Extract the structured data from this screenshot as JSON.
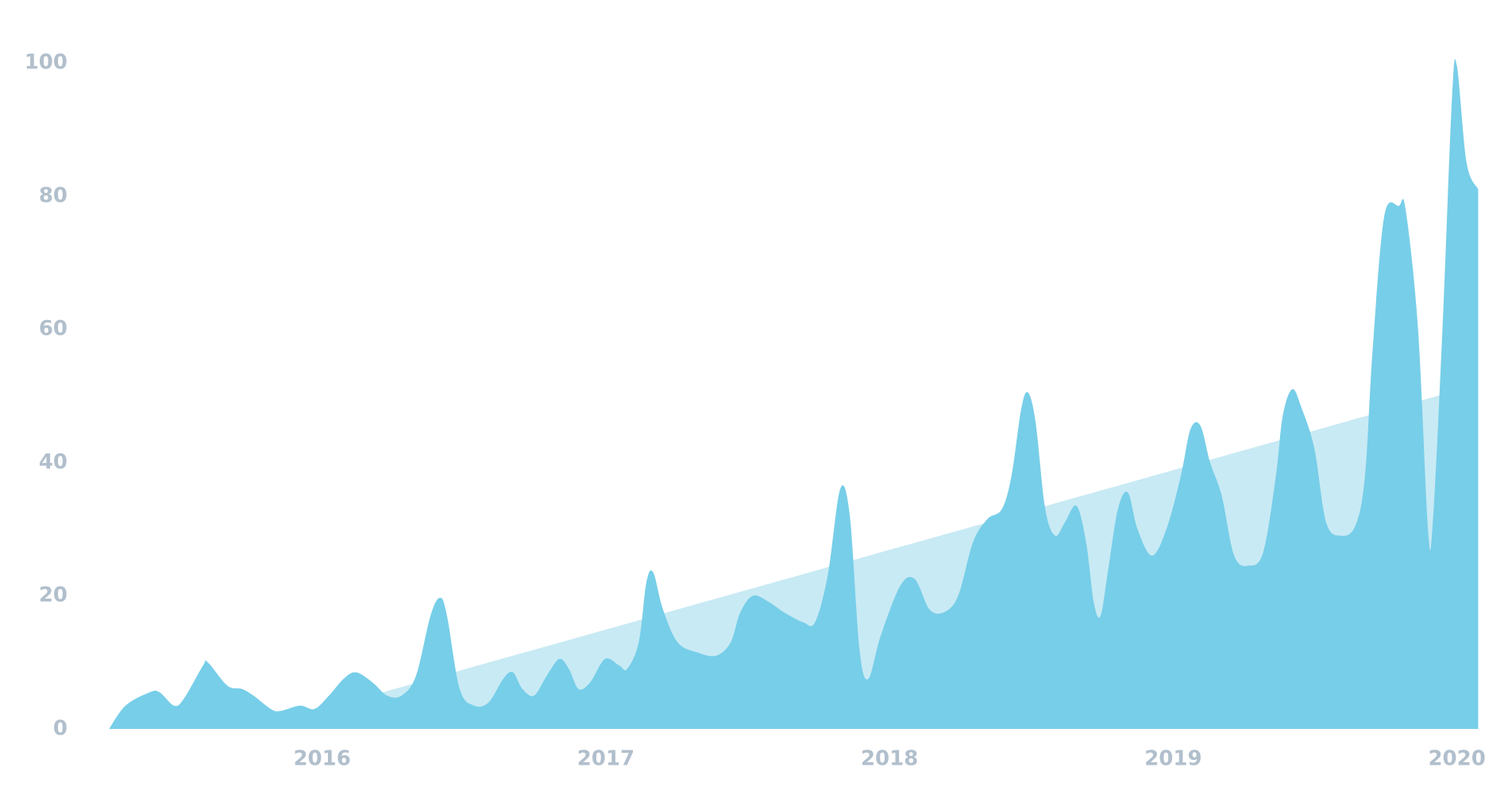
{
  "chart_data": {
    "type": "area",
    "xlim": [
      2015.164,
      2020.085
    ],
    "xticks": [
      2016,
      2017,
      2018,
      2019,
      2020
    ],
    "ylim": [
      0,
      105
    ],
    "yticks": [
      0,
      20,
      40,
      60,
      80,
      100
    ],
    "grid": false,
    "series": [
      {
        "color": "#c8eaf4",
        "x": [
          2016.188,
          2020.075
        ],
        "values": [
          5.2,
          51.7
        ]
      },
      {
        "color": "#77cee8",
        "x": [
          2015.249,
          2015.307,
          2015.392,
          2015.427,
          2015.478,
          2015.512,
          2015.58,
          2015.597,
          2015.666,
          2015.717,
          2015.758,
          2015.819,
          2015.853,
          2015.922,
          2015.973,
          2016.024,
          2016.075,
          2016.119,
          2016.177,
          2016.229,
          2016.28,
          2016.331,
          2016.382,
          2016.416,
          2016.44,
          2016.485,
          2016.536,
          2016.587,
          2016.638,
          2016.672,
          2016.706,
          2016.747,
          2016.792,
          2016.836,
          2016.87,
          2016.904,
          2016.945,
          2016.997,
          2017.048,
          2017.075,
          2017.116,
          2017.143,
          2017.167,
          2017.201,
          2017.253,
          2017.321,
          2017.389,
          2017.44,
          2017.474,
          2017.519,
          2017.577,
          2017.628,
          2017.696,
          2017.737,
          2017.782,
          2017.826,
          2017.86,
          2017.894,
          2017.925,
          2017.969,
          2018.038,
          2018.089,
          2018.14,
          2018.191,
          2018.242,
          2018.294,
          2018.345,
          2018.396,
          2018.43,
          2018.464,
          2018.488,
          2018.515,
          2018.549,
          2018.584,
          2018.618,
          2018.659,
          2018.693,
          2018.72,
          2018.744,
          2018.771,
          2018.805,
          2018.84,
          2018.874,
          2018.925,
          2018.976,
          2019.027,
          2019.061,
          2019.096,
          2019.13,
          2019.171,
          2019.215,
          2019.266,
          2019.317,
          2019.362,
          2019.386,
          2019.42,
          2019.454,
          2019.498,
          2019.539,
          2019.59,
          2019.642,
          2019.676,
          2019.703,
          2019.744,
          2019.795,
          2019.819,
          2019.863,
          2019.898,
          2019.915,
          2019.949,
          2019.983,
          2020.0,
          2020.034,
          2020.075
        ],
        "values": [
          0,
          3.5,
          5.5,
          5.5,
          3.5,
          4.5,
          9.5,
          10,
          6.5,
          6,
          5,
          3,
          2.7,
          3.5,
          3,
          5,
          7.5,
          8.5,
          7,
          5,
          5,
          8,
          17,
          19.7,
          17,
          6,
          3.5,
          4,
          7.5,
          8.5,
          6,
          5,
          8,
          10.5,
          9,
          6,
          7,
          10.5,
          9.5,
          9,
          13,
          22,
          23.5,
          18,
          13,
          11.5,
          11,
          13,
          17.5,
          20,
          19,
          17.5,
          16,
          16,
          23,
          36,
          32,
          12,
          7.5,
          14,
          21.5,
          22.5,
          18,
          17.5,
          20,
          28,
          31.5,
          33,
          38,
          48,
          50.5,
          46,
          33,
          29,
          31,
          33.5,
          28,
          19,
          17,
          24,
          33,
          35.5,
          30,
          26,
          30,
          38,
          45,
          45.5,
          40,
          35,
          26,
          24.5,
          26.5,
          38,
          47,
          51,
          48,
          42,
          31,
          29,
          30.5,
          38,
          57,
          77,
          78.5,
          78,
          60,
          30,
          31,
          60,
          95,
          99.5,
          85,
          81
        ]
      }
    ]
  }
}
